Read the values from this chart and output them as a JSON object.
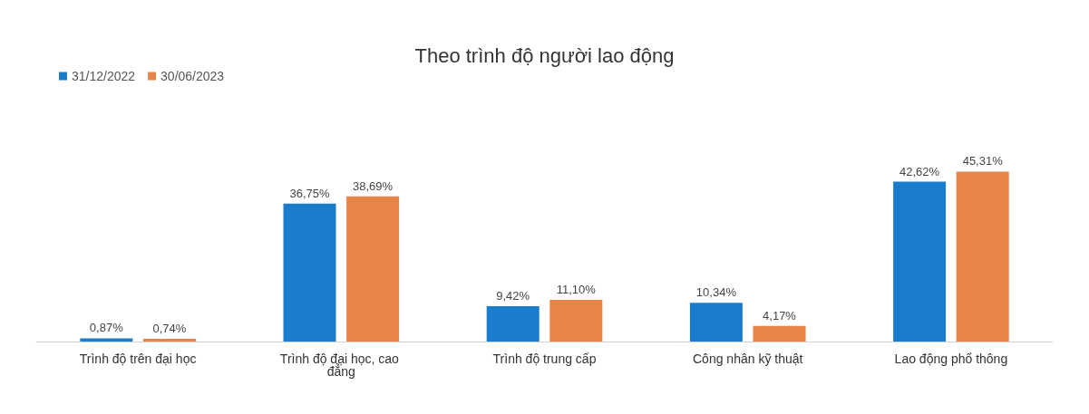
{
  "chart_data": {
    "type": "bar",
    "title": "Theo trình độ người lao động",
    "categories": [
      "Trình độ trên đại học",
      "Trình độ đại học, cao đẳng",
      "Trình độ trung cấp",
      "Công nhân kỹ thuật",
      "Lao động phổ thông"
    ],
    "series": [
      {
        "name": "31/12/2022",
        "color": "#1a7ccc",
        "values": [
          0.87,
          36.75,
          9.42,
          10.34,
          42.62
        ],
        "value_labels": [
          "0,87%",
          "36,75%",
          "9,42%",
          "10,34%",
          "42,62%"
        ]
      },
      {
        "name": "30/06/2023",
        "color": "#e8834a",
        "values": [
          0.74,
          38.69,
          11.1,
          4.17,
          45.31
        ],
        "value_labels": [
          "0,74%",
          "38,69%",
          "11,10%",
          "4,17%",
          "45,31%"
        ]
      }
    ],
    "legend": "top left"
  }
}
